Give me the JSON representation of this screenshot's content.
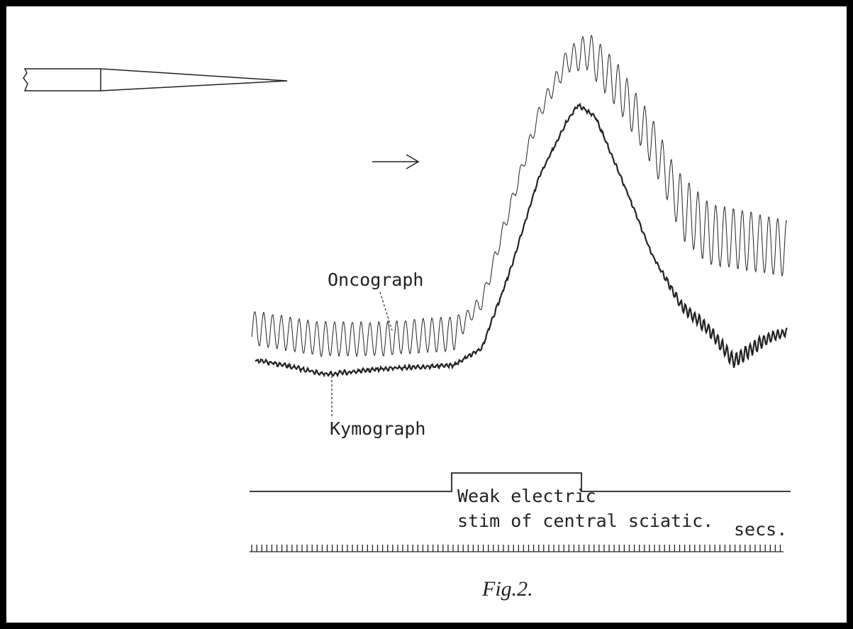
{
  "figure": {
    "trace_labels": {
      "oncograph": "Oncograph",
      "kymograph": "Kymograph"
    },
    "stimulus_label": [
      "Weak electric",
      "stim of central sciatic."
    ],
    "time_label": "secs.",
    "caption": "Fig.2."
  }
}
